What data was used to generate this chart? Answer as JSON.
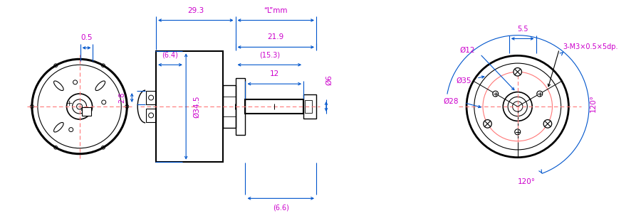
{
  "bg_color": "#ffffff",
  "line_color": "#000000",
  "dim_color": "#0055cc",
  "magenta_color": "#cc00cc",
  "red_dash_color": "#ff7777",
  "center_color": "#ff0000",
  "labels": {
    "dim_29_3": "29.3",
    "dim_L": "“L”mm",
    "dim_21_9": "21.9",
    "dim_6_4": "(6.4)",
    "dim_15_3": "(15.3)",
    "dim_12": "12",
    "dim_6": "Ø6",
    "dim_34_5": "Ø34.5",
    "dim_2_8": "2.8",
    "dim_0_5": "0.5",
    "dim_6_6": "(6.6)",
    "dim_phi12": "Ø12",
    "dim_phi35": "Ø35",
    "dim_phi28": "Ø28",
    "dim_5_5": "5.5",
    "dim_3M": "3-M3×0.5×5dp.",
    "dim_120_r": "120°",
    "dim_120_b": "120°"
  }
}
